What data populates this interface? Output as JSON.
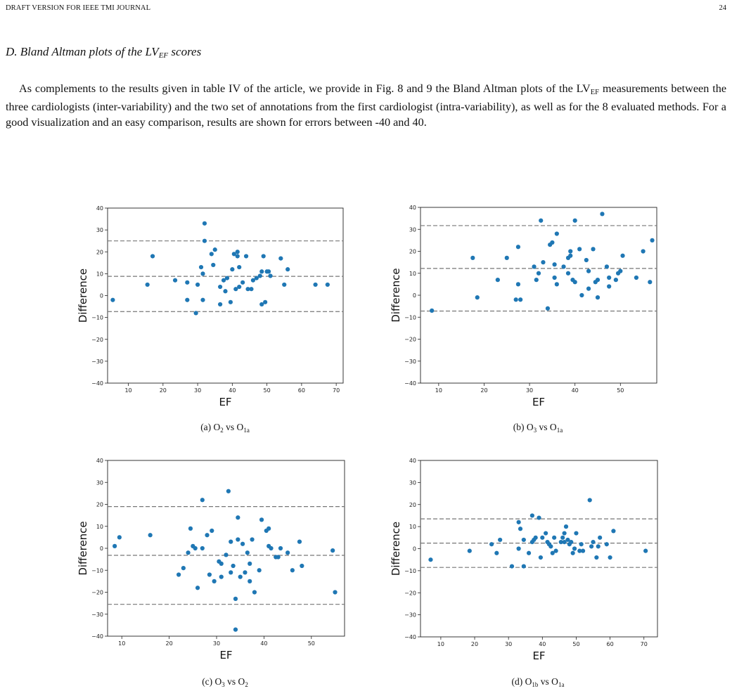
{
  "header": {
    "left": "DRAFT VERSION FOR IEEE TMI JOURNAL",
    "page_number": "24"
  },
  "section": {
    "title_prefix": "D. Bland Altman plots of the LV",
    "title_sub": "EF",
    "title_suffix": " scores"
  },
  "paragraph": {
    "part1": "As complements to the results given in table IV of the article, we provide in Fig. 8 and 9 the Bland Altman plots of the LV",
    "sub": "EF",
    "part2": " measurements between the three cardiologists (inter-variability) and the two set of annotations from the first cardiologist (intra-variability), as well as for the 8 evaluated methods. For a good visualization and an easy comparison, results are shown for errors between -40 and 40."
  },
  "captions": [
    {
      "label": "(a) O",
      "s1": "2",
      "mid": " vs O",
      "s2": "1a"
    },
    {
      "label": "(b) O",
      "s1": "3",
      "mid": " vs O",
      "s2": "1a"
    },
    {
      "label": "(c) O",
      "s1": "3",
      "mid": " vs O",
      "s2": "2"
    },
    {
      "label": "(d) O",
      "s1": "1b",
      "mid": " vs O",
      "s2": "1a"
    }
  ],
  "colors": {
    "point": "#1f77b4",
    "line": "#777777"
  },
  "chart_data": [
    {
      "type": "scatter",
      "xlabel": "EF",
      "ylabel": "Difference",
      "xlim": [
        4,
        72
      ],
      "ylim": [
        -40,
        40
      ],
      "xticks": [
        10,
        20,
        30,
        40,
        50,
        60,
        70
      ],
      "yticks": [
        -40,
        -30,
        -20,
        -10,
        0,
        10,
        20,
        30,
        40
      ],
      "mean": 8.8,
      "upper": 25,
      "lower": -7.3,
      "points": [
        [
          5.5,
          -2
        ],
        [
          15.5,
          5
        ],
        [
          17,
          18
        ],
        [
          23.5,
          7
        ],
        [
          27,
          6
        ],
        [
          27,
          -2
        ],
        [
          29.5,
          -8
        ],
        [
          30,
          5
        ],
        [
          31,
          13
        ],
        [
          31.5,
          10
        ],
        [
          31.5,
          -2
        ],
        [
          32,
          33
        ],
        [
          32,
          25
        ],
        [
          34,
          19
        ],
        [
          34.5,
          14
        ],
        [
          35,
          21
        ],
        [
          36.5,
          4
        ],
        [
          36.5,
          -4
        ],
        [
          37.5,
          7
        ],
        [
          38,
          2
        ],
        [
          38.5,
          8
        ],
        [
          39.5,
          -3
        ],
        [
          40,
          12
        ],
        [
          40.5,
          19
        ],
        [
          41,
          3
        ],
        [
          41.5,
          20
        ],
        [
          41.5,
          18
        ],
        [
          42,
          13
        ],
        [
          42,
          4
        ],
        [
          43,
          6
        ],
        [
          44,
          18
        ],
        [
          44.5,
          3
        ],
        [
          45.5,
          3
        ],
        [
          46,
          7
        ],
        [
          47,
          8
        ],
        [
          48,
          9
        ],
        [
          48.5,
          -4
        ],
        [
          48.5,
          11
        ],
        [
          49,
          18
        ],
        [
          49.5,
          -3
        ],
        [
          50,
          11
        ],
        [
          50.5,
          11
        ],
        [
          51,
          9
        ],
        [
          54,
          17
        ],
        [
          55,
          5
        ],
        [
          56,
          12
        ],
        [
          64,
          5
        ],
        [
          67.5,
          5
        ]
      ]
    },
    {
      "type": "scatter",
      "xlabel": "EF",
      "ylabel": "Difference",
      "xlim": [
        6,
        58
      ],
      "ylim": [
        -40,
        40
      ],
      "xticks": [
        10,
        20,
        30,
        40,
        50
      ],
      "yticks": [
        -40,
        -30,
        -20,
        -10,
        0,
        10,
        20,
        30,
        40
      ],
      "mean": 12.2,
      "upper": 31.7,
      "lower": -7.2,
      "points": [
        [
          8.5,
          -7
        ],
        [
          17.5,
          17
        ],
        [
          18.5,
          -1
        ],
        [
          23,
          7
        ],
        [
          25,
          17
        ],
        [
          27,
          -2
        ],
        [
          27.5,
          5
        ],
        [
          27.5,
          22
        ],
        [
          28,
          -2
        ],
        [
          31,
          13
        ],
        [
          31.5,
          7
        ],
        [
          32,
          10
        ],
        [
          32.5,
          34
        ],
        [
          33,
          15
        ],
        [
          34,
          -6
        ],
        [
          34.5,
          23
        ],
        [
          35,
          24
        ],
        [
          35.5,
          14
        ],
        [
          35.5,
          8
        ],
        [
          36,
          28
        ],
        [
          36,
          5
        ],
        [
          37.5,
          13
        ],
        [
          38.5,
          17
        ],
        [
          38.5,
          10
        ],
        [
          39,
          20
        ],
        [
          39,
          18
        ],
        [
          39.5,
          7
        ],
        [
          40,
          34
        ],
        [
          40,
          6
        ],
        [
          41,
          21
        ],
        [
          41.5,
          0
        ],
        [
          42.5,
          16
        ],
        [
          43,
          11
        ],
        [
          43,
          3
        ],
        [
          44,
          21
        ],
        [
          44.5,
          6
        ],
        [
          45,
          7
        ],
        [
          45,
          -1
        ],
        [
          46,
          37
        ],
        [
          47,
          13
        ],
        [
          47.5,
          8
        ],
        [
          47.5,
          4
        ],
        [
          49,
          7
        ],
        [
          49.5,
          10
        ],
        [
          50,
          11
        ],
        [
          50.5,
          18
        ],
        [
          53.5,
          8
        ],
        [
          55,
          20
        ],
        [
          56.5,
          6
        ],
        [
          57,
          25
        ]
      ]
    },
    {
      "type": "scatter",
      "xlabel": "EF",
      "ylabel": "Difference",
      "xlim": [
        7,
        57
      ],
      "ylim": [
        -40,
        40
      ],
      "xticks": [
        10,
        20,
        30,
        40,
        50
      ],
      "yticks": [
        -40,
        -30,
        -20,
        -10,
        0,
        10,
        20,
        30,
        40
      ],
      "mean": -3.2,
      "upper": 19,
      "lower": -25.5,
      "points": [
        [
          8.5,
          1
        ],
        [
          9.5,
          5
        ],
        [
          16,
          6
        ],
        [
          22,
          -12
        ],
        [
          23,
          -9
        ],
        [
          24,
          -2
        ],
        [
          24.5,
          9
        ],
        [
          25,
          1
        ],
        [
          25.5,
          0
        ],
        [
          26,
          -18
        ],
        [
          27,
          22
        ],
        [
          27,
          0
        ],
        [
          28,
          6
        ],
        [
          28.5,
          -12
        ],
        [
          29,
          8
        ],
        [
          29.5,
          -15
        ],
        [
          30.5,
          -6
        ],
        [
          31,
          -13
        ],
        [
          31,
          -7
        ],
        [
          32,
          -3
        ],
        [
          32.5,
          26
        ],
        [
          33,
          3
        ],
        [
          33,
          -11
        ],
        [
          33.5,
          -8
        ],
        [
          34,
          -23
        ],
        [
          34,
          -37
        ],
        [
          34.5,
          14
        ],
        [
          34.5,
          4
        ],
        [
          35,
          -13
        ],
        [
          35.5,
          2
        ],
        [
          36,
          -11
        ],
        [
          36.5,
          -2
        ],
        [
          37,
          -7
        ],
        [
          37,
          -15
        ],
        [
          37.5,
          4
        ],
        [
          38,
          -20
        ],
        [
          39,
          -10
        ],
        [
          39.5,
          13
        ],
        [
          40.5,
          8
        ],
        [
          41,
          9
        ],
        [
          41,
          1
        ],
        [
          41.5,
          0
        ],
        [
          42.5,
          -4
        ],
        [
          43,
          -4
        ],
        [
          43.5,
          0
        ],
        [
          45,
          -2
        ],
        [
          46,
          -10
        ],
        [
          47.5,
          3
        ],
        [
          48,
          -8
        ],
        [
          54.5,
          -1
        ],
        [
          55,
          -20
        ]
      ]
    },
    {
      "type": "scatter",
      "xlabel": "EF",
      "ylabel": "Difference",
      "xlim": [
        4,
        74
      ],
      "ylim": [
        -40,
        40
      ],
      "xticks": [
        10,
        20,
        30,
        40,
        50,
        60,
        70
      ],
      "yticks": [
        -40,
        -30,
        -20,
        -10,
        0,
        10,
        20,
        30,
        40
      ],
      "mean": 2.5,
      "upper": 13.5,
      "lower": -8.5,
      "points": [
        [
          7,
          -5
        ],
        [
          18.5,
          -1
        ],
        [
          25,
          2
        ],
        [
          26.5,
          -2
        ],
        [
          27.5,
          4
        ],
        [
          31,
          -8
        ],
        [
          33,
          12
        ],
        [
          33,
          0
        ],
        [
          33.5,
          9
        ],
        [
          34.5,
          4
        ],
        [
          34.5,
          -8
        ],
        [
          36,
          -2
        ],
        [
          37,
          3
        ],
        [
          37,
          15
        ],
        [
          37.5,
          4
        ],
        [
          38,
          5
        ],
        [
          39,
          14
        ],
        [
          39.5,
          -4
        ],
        [
          40,
          5
        ],
        [
          41,
          7
        ],
        [
          41.5,
          3
        ],
        [
          42,
          2
        ],
        [
          42.5,
          1
        ],
        [
          43,
          -2
        ],
        [
          43.5,
          5
        ],
        [
          44,
          -1
        ],
        [
          45.5,
          3
        ],
        [
          46,
          5
        ],
        [
          46.5,
          7
        ],
        [
          46.5,
          3
        ],
        [
          47,
          10
        ],
        [
          47.5,
          4
        ],
        [
          48,
          2
        ],
        [
          48.5,
          3
        ],
        [
          49,
          -2
        ],
        [
          49.5,
          0
        ],
        [
          50,
          7
        ],
        [
          51,
          -1
        ],
        [
          51.5,
          2
        ],
        [
          52,
          -1
        ],
        [
          54,
          22
        ],
        [
          54.5,
          1
        ],
        [
          55,
          3
        ],
        [
          56,
          -4
        ],
        [
          56.5,
          1
        ],
        [
          57,
          5
        ],
        [
          59,
          2
        ],
        [
          60,
          -4
        ],
        [
          61,
          8
        ],
        [
          70.5,
          -1
        ]
      ]
    }
  ]
}
